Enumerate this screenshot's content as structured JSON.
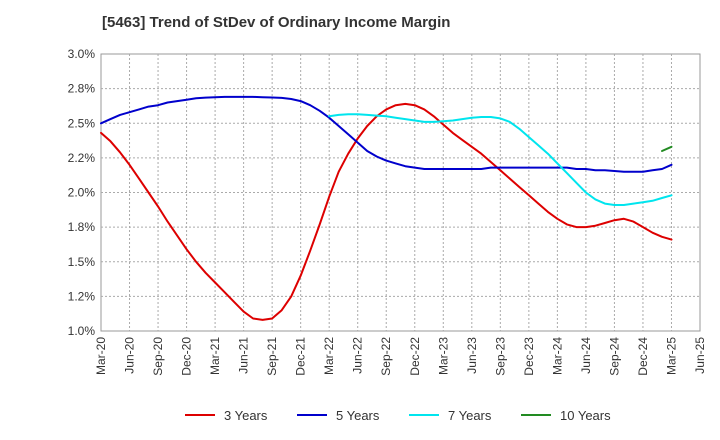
{
  "chart_data": {
    "type": "line",
    "title": "[5463]  Trend of StDev of Ordinary Income Margin",
    "xlabel": "",
    "ylabel": "",
    "x_tick_labels": [
      "Mar-20",
      "Jun-20",
      "Sep-20",
      "Dec-20",
      "Mar-21",
      "Jun-21",
      "Sep-21",
      "Dec-21",
      "Mar-22",
      "Jun-22",
      "Sep-22",
      "Dec-22",
      "Mar-23",
      "Jun-23",
      "Sep-23",
      "Dec-23",
      "Mar-24",
      "Jun-24",
      "Sep-24",
      "Dec-24",
      "Mar-25",
      "Jun-25"
    ],
    "y_tick_labels": [
      "1.0%",
      "1.2%",
      "1.5%",
      "1.8%",
      "2.0%",
      "2.2%",
      "2.5%",
      "2.8%",
      "3.0%"
    ],
    "ylim": [
      1.0,
      3.0
    ],
    "grid": true,
    "legend_position": "bottom",
    "series": [
      {
        "name": "3 Years",
        "color": "#dd0000",
        "points": [
          [
            "Mar-20",
            2.43
          ],
          [
            "Apr-20",
            2.37
          ],
          [
            "May-20",
            2.29
          ],
          [
            "Jun-20",
            2.2
          ],
          [
            "Jul-20",
            2.1
          ],
          [
            "Aug-20",
            2.0
          ],
          [
            "Sep-20",
            1.9
          ],
          [
            "Oct-20",
            1.79
          ],
          [
            "Nov-20",
            1.69
          ],
          [
            "Dec-20",
            1.59
          ],
          [
            "Jan-21",
            1.5
          ],
          [
            "Feb-21",
            1.42
          ],
          [
            "Mar-21",
            1.35
          ],
          [
            "Apr-21",
            1.28
          ],
          [
            "May-21",
            1.21
          ],
          [
            "Jun-21",
            1.14
          ],
          [
            "Jul-21",
            1.09
          ],
          [
            "Aug-21",
            1.08
          ],
          [
            "Sep-21",
            1.09
          ],
          [
            "Oct-21",
            1.15
          ],
          [
            "Nov-21",
            1.25
          ],
          [
            "Dec-21",
            1.4
          ],
          [
            "Jan-22",
            1.58
          ],
          [
            "Feb-22",
            1.77
          ],
          [
            "Mar-22",
            1.97
          ],
          [
            "Apr-22",
            2.15
          ],
          [
            "May-22",
            2.28
          ],
          [
            "Jun-22",
            2.39
          ],
          [
            "Jul-22",
            2.48
          ],
          [
            "Aug-22",
            2.55
          ],
          [
            "Sep-22",
            2.6
          ],
          [
            "Oct-22",
            2.63
          ],
          [
            "Nov-22",
            2.64
          ],
          [
            "Dec-22",
            2.63
          ],
          [
            "Jan-23",
            2.6
          ],
          [
            "Feb-23",
            2.55
          ],
          [
            "Mar-23",
            2.49
          ],
          [
            "Apr-23",
            2.43
          ],
          [
            "May-23",
            2.38
          ],
          [
            "Jun-23",
            2.33
          ],
          [
            "Jul-23",
            2.28
          ],
          [
            "Aug-23",
            2.22
          ],
          [
            "Sep-23",
            2.16
          ],
          [
            "Oct-23",
            2.1
          ],
          [
            "Nov-23",
            2.04
          ],
          [
            "Dec-23",
            1.98
          ],
          [
            "Jan-24",
            1.92
          ],
          [
            "Feb-24",
            1.86
          ],
          [
            "Mar-24",
            1.81
          ],
          [
            "Apr-24",
            1.77
          ],
          [
            "May-24",
            1.75
          ],
          [
            "Jun-24",
            1.75
          ],
          [
            "Jul-24",
            1.76
          ],
          [
            "Aug-24",
            1.78
          ],
          [
            "Sep-24",
            1.8
          ],
          [
            "Oct-24",
            1.81
          ],
          [
            "Nov-24",
            1.79
          ],
          [
            "Dec-24",
            1.75
          ],
          [
            "Jan-25",
            1.71
          ],
          [
            "Feb-25",
            1.68
          ],
          [
            "Mar-25",
            1.66
          ]
        ]
      },
      {
        "name": "5 Years",
        "color": "#0000cc",
        "points": [
          [
            "Mar-20",
            2.5
          ],
          [
            "Apr-20",
            2.53
          ],
          [
            "May-20",
            2.56
          ],
          [
            "Jun-20",
            2.58
          ],
          [
            "Jul-20",
            2.6
          ],
          [
            "Aug-20",
            2.62
          ],
          [
            "Sep-20",
            2.63
          ],
          [
            "Oct-20",
            2.65
          ],
          [
            "Nov-20",
            2.66
          ],
          [
            "Dec-20",
            2.67
          ],
          [
            "Jan-21",
            2.68
          ],
          [
            "Feb-21",
            2.685
          ],
          [
            "Mar-21",
            2.688
          ],
          [
            "Apr-21",
            2.69
          ],
          [
            "May-21",
            2.69
          ],
          [
            "Jun-21",
            2.69
          ],
          [
            "Jul-21",
            2.69
          ],
          [
            "Aug-21",
            2.688
          ],
          [
            "Sep-21",
            2.686
          ],
          [
            "Oct-21",
            2.683
          ],
          [
            "Nov-21",
            2.675
          ],
          [
            "Dec-21",
            2.66
          ],
          [
            "Jan-22",
            2.63
          ],
          [
            "Feb-22",
            2.59
          ],
          [
            "Mar-22",
            2.54
          ],
          [
            "Apr-22",
            2.48
          ],
          [
            "May-22",
            2.42
          ],
          [
            "Jun-22",
            2.36
          ],
          [
            "Jul-22",
            2.3
          ],
          [
            "Aug-22",
            2.26
          ],
          [
            "Sep-22",
            2.23
          ],
          [
            "Oct-22",
            2.21
          ],
          [
            "Nov-22",
            2.19
          ],
          [
            "Dec-22",
            2.18
          ],
          [
            "Jan-23",
            2.17
          ],
          [
            "Feb-23",
            2.17
          ],
          [
            "Mar-23",
            2.17
          ],
          [
            "Apr-23",
            2.17
          ],
          [
            "May-23",
            2.17
          ],
          [
            "Jun-23",
            2.17
          ],
          [
            "Jul-23",
            2.17
          ],
          [
            "Aug-23",
            2.18
          ],
          [
            "Sep-23",
            2.18
          ],
          [
            "Oct-23",
            2.18
          ],
          [
            "Nov-23",
            2.18
          ],
          [
            "Dec-23",
            2.18
          ],
          [
            "Jan-24",
            2.18
          ],
          [
            "Feb-24",
            2.18
          ],
          [
            "Mar-24",
            2.18
          ],
          [
            "Apr-24",
            2.18
          ],
          [
            "May-24",
            2.17
          ],
          [
            "Jun-24",
            2.17
          ],
          [
            "Jul-24",
            2.16
          ],
          [
            "Aug-24",
            2.16
          ],
          [
            "Sep-24",
            2.155
          ],
          [
            "Oct-24",
            2.15
          ],
          [
            "Nov-24",
            2.15
          ],
          [
            "Dec-24",
            2.15
          ],
          [
            "Jan-25",
            2.16
          ],
          [
            "Feb-25",
            2.17
          ],
          [
            "Mar-25",
            2.2
          ]
        ]
      },
      {
        "name": "7 Years",
        "color": "#00e5ee",
        "points": [
          [
            "Mar-22",
            2.55
          ],
          [
            "Apr-22",
            2.56
          ],
          [
            "May-22",
            2.565
          ],
          [
            "Jun-22",
            2.565
          ],
          [
            "Jul-22",
            2.56
          ],
          [
            "Aug-22",
            2.555
          ],
          [
            "Sep-22",
            2.55
          ],
          [
            "Oct-22",
            2.54
          ],
          [
            "Nov-22",
            2.53
          ],
          [
            "Dec-22",
            2.52
          ],
          [
            "Jan-23",
            2.51
          ],
          [
            "Feb-23",
            2.51
          ],
          [
            "Mar-23",
            2.515
          ],
          [
            "Apr-23",
            2.52
          ],
          [
            "May-23",
            2.53
          ],
          [
            "Jun-23",
            2.54
          ],
          [
            "Jul-23",
            2.545
          ],
          [
            "Aug-23",
            2.545
          ],
          [
            "Sep-23",
            2.535
          ],
          [
            "Oct-23",
            2.51
          ],
          [
            "Nov-23",
            2.46
          ],
          [
            "Dec-23",
            2.4
          ],
          [
            "Jan-24",
            2.34
          ],
          [
            "Feb-24",
            2.28
          ],
          [
            "Mar-24",
            2.21
          ],
          [
            "Apr-24",
            2.14
          ],
          [
            "May-24",
            2.07
          ],
          [
            "Jun-24",
            2.0
          ],
          [
            "Jul-24",
            1.95
          ],
          [
            "Aug-24",
            1.92
          ],
          [
            "Sep-24",
            1.91
          ],
          [
            "Oct-24",
            1.91
          ],
          [
            "Nov-24",
            1.92
          ],
          [
            "Dec-24",
            1.93
          ],
          [
            "Jan-25",
            1.94
          ],
          [
            "Feb-25",
            1.96
          ],
          [
            "Mar-25",
            1.98
          ]
        ]
      },
      {
        "name": "10 Years",
        "color": "#228b22",
        "points": [
          [
            "Feb-25",
            2.3
          ],
          [
            "Mar-25",
            2.33
          ]
        ]
      }
    ]
  }
}
